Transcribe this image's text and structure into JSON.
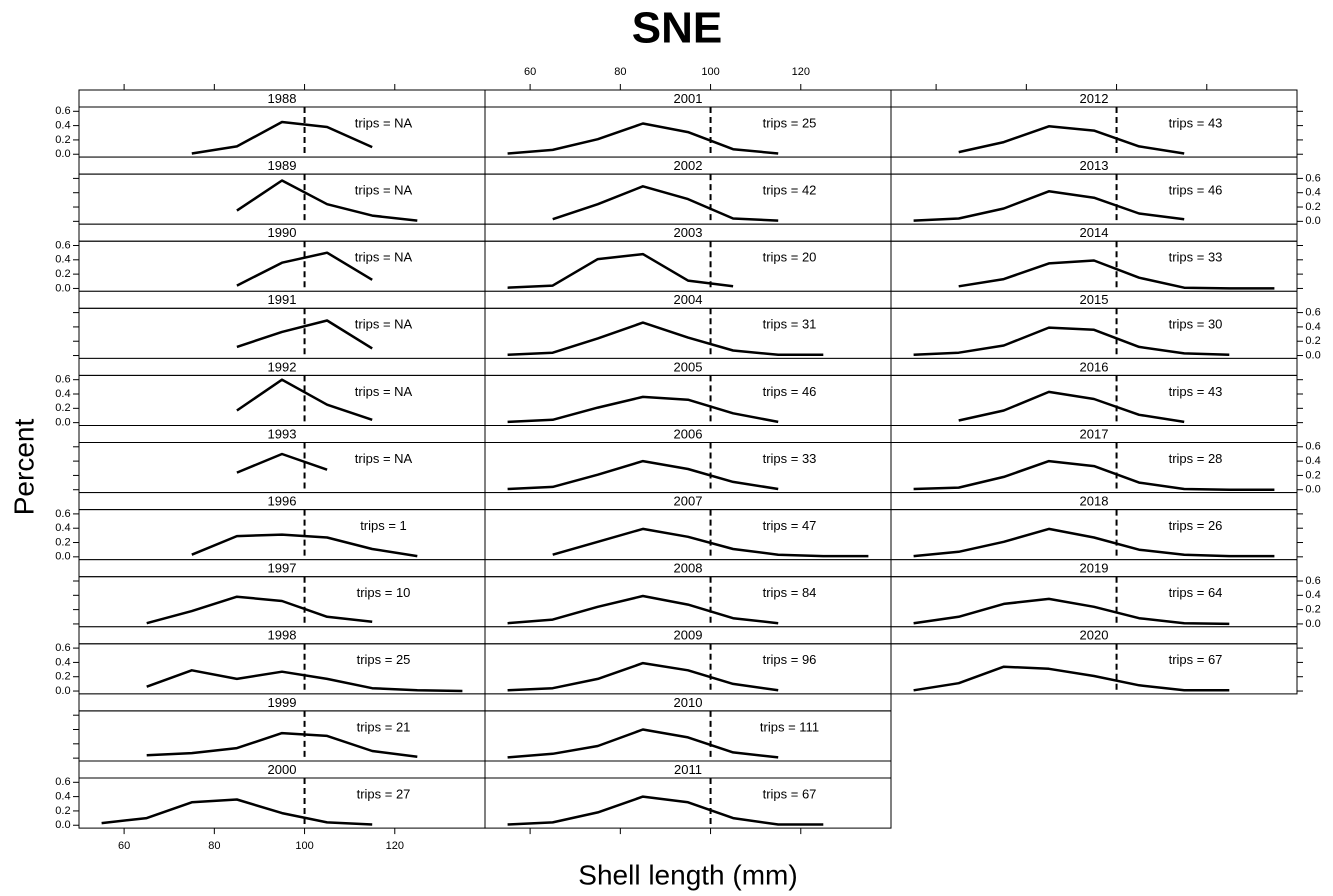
{
  "chart_data": {
    "type": "line",
    "title": "SNE",
    "xlabel": "Shell length (mm)",
    "ylabel": "Percent",
    "xlim": [
      50,
      140
    ],
    "xticks": [
      60,
      80,
      100,
      120
    ],
    "ylim": [
      -0.04,
      0.66
    ],
    "yticks": [
      {
        "value": 0,
        "label": "0.0"
      },
      0.2,
      0.4,
      0.6
    ],
    "reference_x": 100,
    "color": "#000000",
    "panels": [
      {
        "strip": "1988",
        "note": "trips = NA",
        "x": [
          75,
          85,
          95,
          105,
          115
        ],
        "values": [
          0.01,
          0.11,
          0.45,
          0.38,
          0.1
        ]
      },
      {
        "strip": "1989",
        "note": "trips = NA",
        "x": [
          85,
          95,
          105,
          115,
          125
        ],
        "values": [
          0.15,
          0.57,
          0.24,
          0.08,
          0.01
        ]
      },
      {
        "strip": "1990",
        "note": "trips = NA",
        "x": [
          85,
          95,
          105,
          115
        ],
        "values": [
          0.04,
          0.36,
          0.5,
          0.12
        ]
      },
      {
        "strip": "1991",
        "note": "trips = NA",
        "x": [
          85,
          95,
          105,
          115
        ],
        "values": [
          0.12,
          0.33,
          0.49,
          0.1
        ]
      },
      {
        "strip": "1992",
        "note": "trips = NA",
        "x": [
          85,
          95,
          105,
          115
        ],
        "values": [
          0.17,
          0.6,
          0.25,
          0.04
        ]
      },
      {
        "strip": "1993",
        "note": "trips = NA",
        "x": [
          85,
          95,
          105
        ],
        "values": [
          0.24,
          0.5,
          0.28
        ]
      },
      {
        "strip": "1996",
        "note": "trips = 1",
        "x": [
          75,
          85,
          95,
          105,
          115,
          125
        ],
        "values": [
          0.03,
          0.29,
          0.31,
          0.27,
          0.11,
          0.01
        ]
      },
      {
        "strip": "1997",
        "note": "trips = 10",
        "x": [
          65,
          75,
          85,
          95,
          105,
          115
        ],
        "values": [
          0.01,
          0.18,
          0.38,
          0.32,
          0.1,
          0.03
        ]
      },
      {
        "strip": "1998",
        "note": "trips = 25",
        "x": [
          65,
          75,
          85,
          95,
          105,
          115,
          125,
          135
        ],
        "values": [
          0.06,
          0.29,
          0.17,
          0.27,
          0.17,
          0.04,
          0.01,
          0.0
        ]
      },
      {
        "strip": "1999",
        "note": "trips = 21",
        "x": [
          65,
          75,
          85,
          95,
          105,
          115,
          125
        ],
        "values": [
          0.04,
          0.07,
          0.14,
          0.35,
          0.31,
          0.1,
          0.02
        ]
      },
      {
        "strip": "2000",
        "note": "trips = 27",
        "x": [
          55,
          65,
          75,
          85,
          95,
          105,
          115
        ],
        "values": [
          0.03,
          0.1,
          0.32,
          0.36,
          0.17,
          0.04,
          0.01
        ]
      },
      {
        "strip": "2001",
        "note": "trips = 25",
        "x": [
          55,
          65,
          75,
          85,
          95,
          105,
          115
        ],
        "values": [
          0.01,
          0.06,
          0.21,
          0.43,
          0.31,
          0.07,
          0.01
        ]
      },
      {
        "strip": "2002",
        "note": "trips = 42",
        "x": [
          65,
          75,
          85,
          95,
          105,
          115
        ],
        "values": [
          0.03,
          0.24,
          0.49,
          0.31,
          0.04,
          0.01
        ]
      },
      {
        "strip": "2003",
        "note": "trips = 20",
        "x": [
          55,
          65,
          75,
          85,
          95,
          105
        ],
        "values": [
          0.01,
          0.04,
          0.41,
          0.48,
          0.11,
          0.03
        ]
      },
      {
        "strip": "2004",
        "note": "trips = 31",
        "x": [
          55,
          65,
          75,
          85,
          95,
          105,
          115,
          125
        ],
        "values": [
          0.01,
          0.04,
          0.24,
          0.46,
          0.25,
          0.07,
          0.01,
          0.01
        ]
      },
      {
        "strip": "2005",
        "note": "trips = 46",
        "x": [
          55,
          65,
          75,
          85,
          95,
          105,
          115
        ],
        "values": [
          0.01,
          0.04,
          0.21,
          0.36,
          0.32,
          0.13,
          0.01
        ]
      },
      {
        "strip": "2006",
        "note": "trips = 33",
        "x": [
          55,
          65,
          75,
          85,
          95,
          105,
          115
        ],
        "values": [
          0.01,
          0.04,
          0.21,
          0.4,
          0.29,
          0.11,
          0.01
        ]
      },
      {
        "strip": "2007",
        "note": "trips = 47",
        "x": [
          65,
          75,
          85,
          95,
          105,
          115,
          125,
          135
        ],
        "values": [
          0.03,
          0.21,
          0.39,
          0.28,
          0.11,
          0.03,
          0.01,
          0.01
        ]
      },
      {
        "strip": "2008",
        "note": "trips = 84",
        "x": [
          55,
          65,
          75,
          85,
          95,
          105,
          115
        ],
        "values": [
          0.01,
          0.06,
          0.24,
          0.39,
          0.27,
          0.08,
          0.01
        ]
      },
      {
        "strip": "2009",
        "note": "trips = 96",
        "x": [
          55,
          65,
          75,
          85,
          95,
          105,
          115
        ],
        "values": [
          0.01,
          0.04,
          0.17,
          0.39,
          0.29,
          0.1,
          0.01
        ]
      },
      {
        "strip": "2010",
        "note": "trips = 111",
        "x": [
          55,
          65,
          75,
          85,
          95,
          105,
          115
        ],
        "values": [
          0.01,
          0.06,
          0.17,
          0.4,
          0.29,
          0.08,
          0.01
        ]
      },
      {
        "strip": "2011",
        "note": "trips = 67",
        "x": [
          55,
          65,
          75,
          85,
          95,
          105,
          115,
          125
        ],
        "values": [
          0.01,
          0.04,
          0.18,
          0.4,
          0.32,
          0.1,
          0.01,
          0.01
        ]
      },
      {
        "strip": "2012",
        "note": "trips = 43",
        "x": [
          65,
          75,
          85,
          95,
          105,
          115
        ],
        "values": [
          0.03,
          0.17,
          0.39,
          0.33,
          0.11,
          0.01
        ]
      },
      {
        "strip": "2013",
        "note": "trips = 46",
        "x": [
          55,
          65,
          75,
          85,
          95,
          105,
          115
        ],
        "values": [
          0.01,
          0.04,
          0.18,
          0.42,
          0.33,
          0.11,
          0.03
        ]
      },
      {
        "strip": "2014",
        "note": "trips = 33",
        "x": [
          65,
          75,
          85,
          95,
          105,
          115,
          125,
          135
        ],
        "values": [
          0.03,
          0.13,
          0.35,
          0.39,
          0.15,
          0.01,
          0.0,
          0.0
        ]
      },
      {
        "strip": "2015",
        "note": "trips = 30",
        "x": [
          55,
          65,
          75,
          85,
          95,
          105,
          115,
          125
        ],
        "values": [
          0.01,
          0.04,
          0.14,
          0.39,
          0.36,
          0.12,
          0.03,
          0.01
        ]
      },
      {
        "strip": "2016",
        "note": "trips = 43",
        "x": [
          65,
          75,
          85,
          95,
          105,
          115
        ],
        "values": [
          0.03,
          0.17,
          0.43,
          0.33,
          0.11,
          0.01
        ]
      },
      {
        "strip": "2017",
        "note": "trips = 28",
        "x": [
          55,
          65,
          75,
          85,
          95,
          105,
          115,
          125,
          135
        ],
        "values": [
          0.01,
          0.03,
          0.18,
          0.4,
          0.33,
          0.1,
          0.01,
          0.0,
          0.0
        ]
      },
      {
        "strip": "2018",
        "note": "trips = 26",
        "x": [
          55,
          65,
          75,
          85,
          95,
          105,
          115,
          125,
          135
        ],
        "values": [
          0.01,
          0.07,
          0.21,
          0.39,
          0.27,
          0.1,
          0.03,
          0.01,
          0.01
        ]
      },
      {
        "strip": "2019",
        "note": "trips = 64",
        "x": [
          55,
          65,
          75,
          85,
          95,
          105,
          115,
          125
        ],
        "values": [
          0.01,
          0.1,
          0.28,
          0.35,
          0.24,
          0.08,
          0.01,
          0.0
        ]
      },
      {
        "strip": "2020",
        "note": "trips = 67",
        "x": [
          55,
          65,
          75,
          85,
          95,
          105,
          115,
          125
        ],
        "values": [
          0.01,
          0.11,
          0.34,
          0.31,
          0.21,
          0.08,
          0.01,
          0.01
        ]
      }
    ]
  }
}
